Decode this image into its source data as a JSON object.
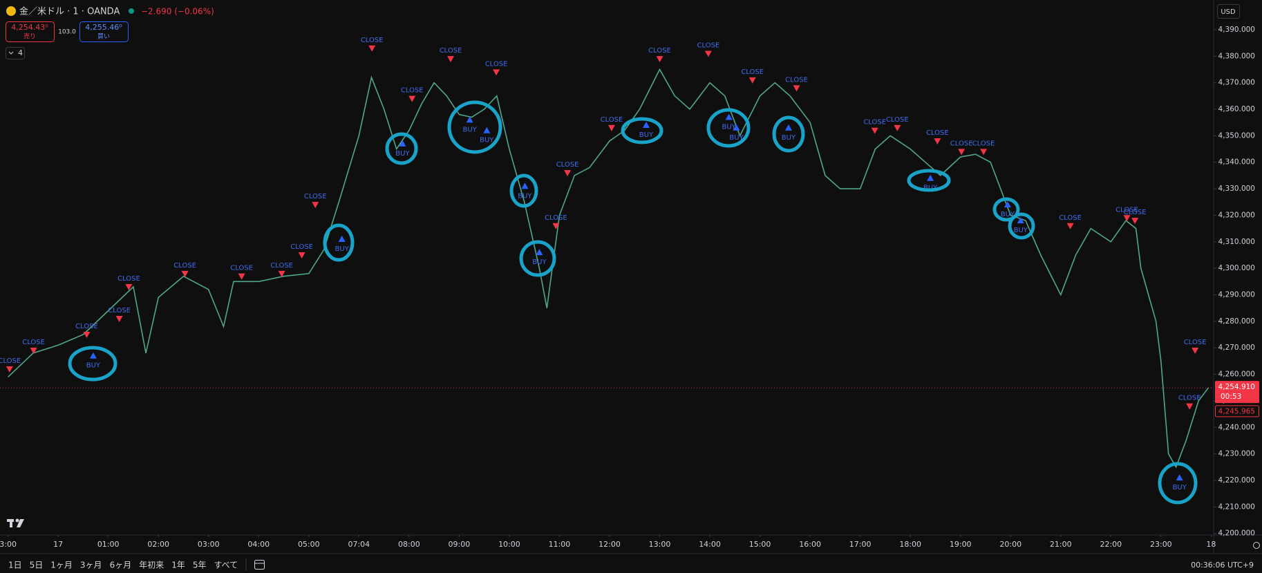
{
  "chart_data": {
    "type": "line",
    "title": "金／米ドル · 1 · OANDA",
    "subtitle": "−2.690 (−0.06%)",
    "color": "#4fa88a",
    "x": [
      0,
      0.5,
      1,
      1.5,
      2,
      2.5,
      2.75,
      3,
      3.5,
      4,
      4.3,
      4.5,
      5,
      5.5,
      6,
      6.3,
      6.6,
      7,
      7.25,
      7.5,
      7.75,
      8,
      8.25,
      8.5,
      8.75,
      9,
      9.25,
      9.5,
      9.75,
      10,
      10.3,
      10.6,
      10.75,
      11,
      11.3,
      11.6,
      12,
      12.3,
      12.6,
      13,
      13.3,
      13.6,
      14,
      14.3,
      14.6,
      15,
      15.3,
      15.6,
      16,
      16.3,
      16.6,
      17,
      17.3,
      17.6,
      18,
      18.3,
      18.6,
      19,
      19.3,
      19.6,
      20,
      20.3,
      20.6,
      21,
      21.3,
      21.6,
      22,
      22.3,
      22.5,
      22.6,
      22.9,
      23,
      23.15,
      23.3,
      23.5,
      23.75,
      23.95
    ],
    "values": [
      4259,
      4268,
      4271,
      4275,
      4284,
      4293,
      4268,
      4289,
      4297,
      4292,
      4278,
      4295,
      4295,
      4297,
      4298,
      4307,
      4325,
      4350,
      4372,
      4360,
      4345,
      4352,
      4362,
      4370,
      4365,
      4358,
      4357,
      4360,
      4365,
      4345,
      4325,
      4300,
      4285,
      4320,
      4335,
      4338,
      4348,
      4352,
      4360,
      4375,
      4365,
      4360,
      4370,
      4365,
      4350,
      4365,
      4370,
      4365,
      4355,
      4335,
      4330,
      4330,
      4345,
      4350,
      4345,
      4340,
      4335,
      4342,
      4343,
      4340,
      4320,
      4318,
      4305,
      4290,
      4305,
      4315,
      4310,
      4318,
      4315,
      4300,
      4280,
      4265,
      4230,
      4225,
      4235,
      4250,
      4255
    ],
    "xlim": [
      -0.16,
      24.05
    ],
    "ylim": [
      4199.4,
      4401.2
    ],
    "xticks": [
      {
        "value": 0,
        "label": "3:00"
      },
      {
        "value": 1,
        "label": "17"
      },
      {
        "value": 2,
        "label": "01:00"
      },
      {
        "value": 3,
        "label": "02:00"
      },
      {
        "value": 4,
        "label": "03:00"
      },
      {
        "value": 5,
        "label": "04:00"
      },
      {
        "value": 6,
        "label": "05:00"
      },
      {
        "value": 7,
        "label": "07:04"
      },
      {
        "value": 8,
        "label": "08:00"
      },
      {
        "value": 9,
        "label": "09:00"
      },
      {
        "value": 10,
        "label": "10:00"
      },
      {
        "value": 11,
        "label": "11:00"
      },
      {
        "value": 12,
        "label": "12:00"
      },
      {
        "value": 13,
        "label": "13:00"
      },
      {
        "value": 14,
        "label": "14:00"
      },
      {
        "value": 15,
        "label": "15:00"
      },
      {
        "value": 16,
        "label": "16:00"
      },
      {
        "value": 17,
        "label": "17:00"
      },
      {
        "value": 18,
        "label": "18:00"
      },
      {
        "value": 19,
        "label": "19:00"
      },
      {
        "value": 20,
        "label": "20:00"
      },
      {
        "value": 21,
        "label": "21:00"
      },
      {
        "value": 22,
        "label": "22:00"
      },
      {
        "value": 23,
        "label": "23:00"
      },
      {
        "value": 24,
        "label": "18"
      }
    ],
    "yticks": [
      {
        "value": 4200,
        "label": "4,200.000"
      },
      {
        "value": 4210,
        "label": "4,210.000"
      },
      {
        "value": 4220,
        "label": "4,220.000"
      },
      {
        "value": 4230,
        "label": "4,230.000"
      },
      {
        "value": 4240,
        "label": "4,240.000"
      },
      {
        "value": 4250,
        "label": "4,250.000"
      },
      {
        "value": 4260,
        "label": "4,260.000"
      },
      {
        "value": 4270,
        "label": "4,270.000"
      },
      {
        "value": 4280,
        "label": "4,280.000"
      },
      {
        "value": 4290,
        "label": "4,290.000"
      },
      {
        "value": 4300,
        "label": "4,300.000"
      },
      {
        "value": 4310,
        "label": "4,310.000"
      },
      {
        "value": 4320,
        "label": "4,320.000"
      },
      {
        "value": 4330,
        "label": "4,330.000"
      },
      {
        "value": 4340,
        "label": "4,340.000"
      },
      {
        "value": 4350,
        "label": "4,350.000"
      },
      {
        "value": 4360,
        "label": "4,360.000"
      },
      {
        "value": 4370,
        "label": "4,370.000"
      },
      {
        "value": 4380,
        "label": "4,380.000"
      },
      {
        "value": 4390,
        "label": "4,390.000"
      }
    ],
    "grid": false,
    "buy_signals": {
      "label": "BUY",
      "color": "#2962ff",
      "x": [
        1.7,
        6.66,
        7.87,
        9.21,
        9.55,
        10.31,
        10.6,
        12.73,
        14.38,
        14.53,
        15.57,
        18.4,
        19.94,
        20.2,
        23.37
      ],
      "values": [
        4267,
        4311,
        4347,
        4356,
        4352,
        4331,
        4306,
        4354,
        4357,
        4353,
        4353,
        4334,
        4324,
        4318,
        4221
      ]
    },
    "close_signals": {
      "label": "CLOSE",
      "color": "#f23645",
      "x": [
        0.03,
        0.51,
        1.57,
        2.22,
        2.41,
        3.53,
        4.66,
        5.46,
        5.86,
        6.13,
        7.26,
        8.06,
        8.83,
        9.74,
        10.93,
        11.16,
        12.04,
        13.0,
        13.97,
        14.85,
        15.73,
        17.29,
        17.74,
        18.54,
        19.02,
        19.46,
        21.19,
        22.32,
        22.48,
        23.68,
        23.57
      ],
      "values": [
        4262,
        4269,
        4275,
        4281,
        4293,
        4298,
        4297,
        4298,
        4305,
        4324,
        4383,
        4364,
        4379,
        4374,
        4316,
        4336,
        4353,
        4379,
        4381,
        4371,
        4368,
        4352,
        4353,
        4348,
        4344,
        4344,
        4316,
        4319,
        4318,
        4269,
        4248
      ]
    },
    "last_price": {
      "value": 4254.91,
      "label": "4,254.910"
    },
    "countdown": "00:53",
    "other_price": {
      "value": 4245.965,
      "label": "4,245.965"
    }
  },
  "ui": {
    "sell_price": "4,254.43⁰",
    "sell_label": "売り",
    "spread": "103.0",
    "buy_price": "4,255.46⁰",
    "buy_label": "買い",
    "indicators": "4",
    "currency": "USD",
    "ranges": [
      "1日",
      "5日",
      "1ヶ月",
      "3ヶ月",
      "6ヶ月",
      "年初来",
      "1年",
      "5年",
      "すべて"
    ],
    "clock": "00:36:06 UTC+9"
  }
}
